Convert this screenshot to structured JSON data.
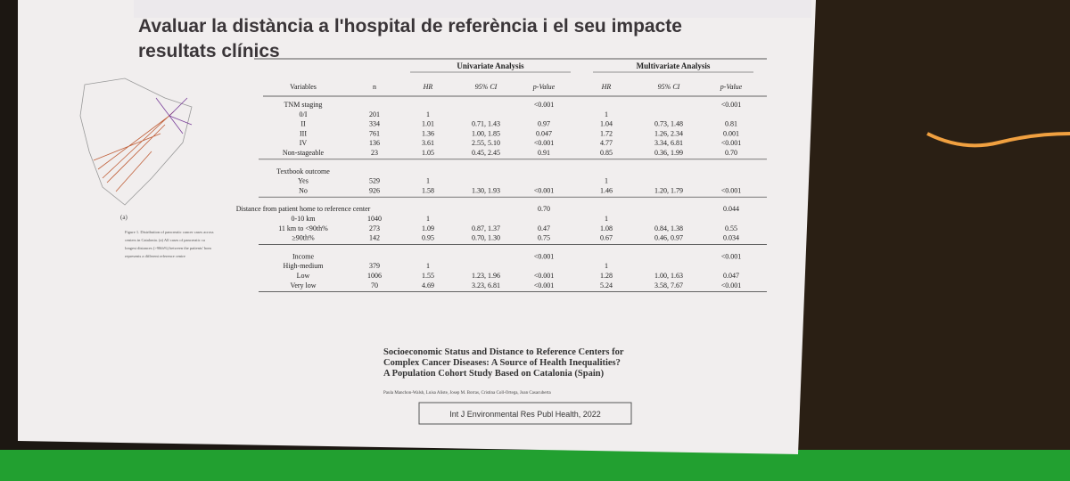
{
  "slide": {
    "title_lines": [
      "Avaluar la distància a l'hospital de referència i el seu impacte",
      "resultats clínics"
    ],
    "figure_label": "(a)",
    "figure_caption": [
      "Figure 1. Distribution of pancreatic cancer cases across",
      "centers in Catalonia. (a) All cases of pancreatic ca",
      "longest distances (>90th%) between the patients' hom",
      "represents a different reference centre"
    ],
    "paper_title": [
      "Socioeconomic Status and Distance to Reference Centers for",
      "Complex Cancer Diseases: A Source of Health Inequalities?",
      "A Population Cohort Study Based on Catalonia (Spain)"
    ],
    "authors": "Paula Manchon-Walsh, Luisa Aliste, Josep M. Borras, Cristina Coll-Ortega, Joan Casacuberta",
    "citation": "Int J Environmental Res Publ Health, 2022"
  },
  "table": {
    "group_headers": [
      "Univariate Analysis",
      "Multivariate Analysis"
    ],
    "columns": [
      "Variables",
      "n",
      "HR",
      "95% CI",
      "p-Value",
      "HR",
      "95% CI",
      "p-Value"
    ],
    "sections": [
      {
        "header": [
          "TNM staging",
          null,
          null,
          null,
          "<0.001",
          null,
          null,
          "<0.001"
        ],
        "rows": [
          [
            "0/I",
            "201",
            "1",
            null,
            null,
            "1",
            null,
            null
          ],
          [
            "II",
            "334",
            "1.01",
            "0.71, 1.43",
            "0.97",
            "1.04",
            "0.73, 1.48",
            "0.81"
          ],
          [
            "III",
            "761",
            "1.36",
            "1.00, 1.85",
            "0.047",
            "1.72",
            "1.26, 2.34",
            "0.001"
          ],
          [
            "IV",
            "136",
            "3.61",
            "2.55, 5.10",
            "<0.001",
            "4.77",
            "3.34, 6.81",
            "<0.001"
          ],
          [
            "Non-stageable",
            "23",
            "1.05",
            "0.45, 2.45",
            "0.91",
            "0.85",
            "0.36, 1.99",
            "0.70"
          ]
        ]
      },
      {
        "header": [
          "Textbook outcome",
          null,
          null,
          null,
          null,
          null,
          null,
          null
        ],
        "rows": [
          [
            "Yes",
            "529",
            "1",
            null,
            null,
            "1",
            null,
            null
          ],
          [
            "No",
            "926",
            "1.58",
            "1.30, 1.93",
            "<0.001",
            "1.46",
            "1.20, 1.79",
            "<0.001"
          ]
        ]
      },
      {
        "header": [
          "Distance from patient home to reference center",
          null,
          null,
          null,
          "0.70",
          null,
          null,
          "0.044"
        ],
        "rows": [
          [
            "0-10 km",
            "1040",
            "1",
            null,
            null,
            "1",
            null,
            null
          ],
          [
            "11 km to <90th%",
            "273",
            "1.09",
            "0.87, 1.37",
            "0.47",
            "1.08",
            "0.84, 1.38",
            "0.55"
          ],
          [
            "≥90th%",
            "142",
            "0.95",
            "0.70, 1.30",
            "0.75",
            "0.67",
            "0.46, 0.97",
            "0.034"
          ]
        ]
      },
      {
        "header": [
          "Income",
          null,
          null,
          null,
          "<0.001",
          null,
          null,
          "<0.001"
        ],
        "rows": [
          [
            "High-medium",
            "379",
            "1",
            null,
            null,
            "1",
            null,
            null
          ],
          [
            "Low",
            "1006",
            "1.55",
            "1.23, 1.96",
            "<0.001",
            "1.28",
            "1.00, 1.63",
            "0.047"
          ],
          [
            "Very low",
            "70",
            "4.69",
            "3.23, 6.81",
            "<0.001",
            "5.24",
            "3.58, 7.67",
            "<0.001"
          ]
        ]
      }
    ]
  }
}
